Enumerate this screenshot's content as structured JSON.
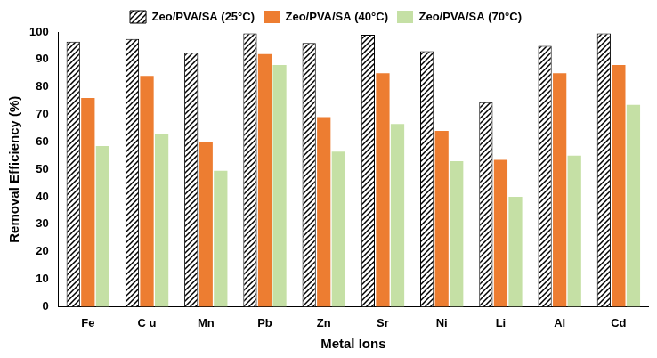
{
  "chart_data": {
    "type": "bar",
    "x_label": "Metal Ions",
    "y_label": "Removal Efficiency (%)",
    "categories": [
      "Fe",
      "C u",
      "Mn",
      "Pb",
      "Zn",
      "Sr",
      "Ni",
      "Li",
      "Al",
      "Cd"
    ],
    "series": [
      {
        "name": "Zeo/PVA/SA (25°C)",
        "color": "#000000",
        "values": [
          96.5,
          97.5,
          92.5,
          99.5,
          96,
          99,
          93,
          74.5,
          95,
          99.5
        ]
      },
      {
        "name": "Zeo/PVA/SA (40°C)",
        "color": "#ed7d31",
        "values": [
          76,
          84,
          60,
          92,
          69,
          85,
          64,
          53.5,
          85,
          88
        ]
      },
      {
        "name": "Zeo/PVA/SA (70°C)",
        "color": "#c5e0a5",
        "values": [
          58.5,
          63,
          49.5,
          88,
          56.5,
          66.5,
          53,
          40,
          55,
          73.5
        ]
      }
    ],
    "ylim": [
      0,
      100
    ],
    "yticks": [
      0,
      10,
      20,
      30,
      40,
      50,
      60,
      70,
      80,
      90,
      100
    ],
    "grid": false,
    "legend": "top"
  }
}
